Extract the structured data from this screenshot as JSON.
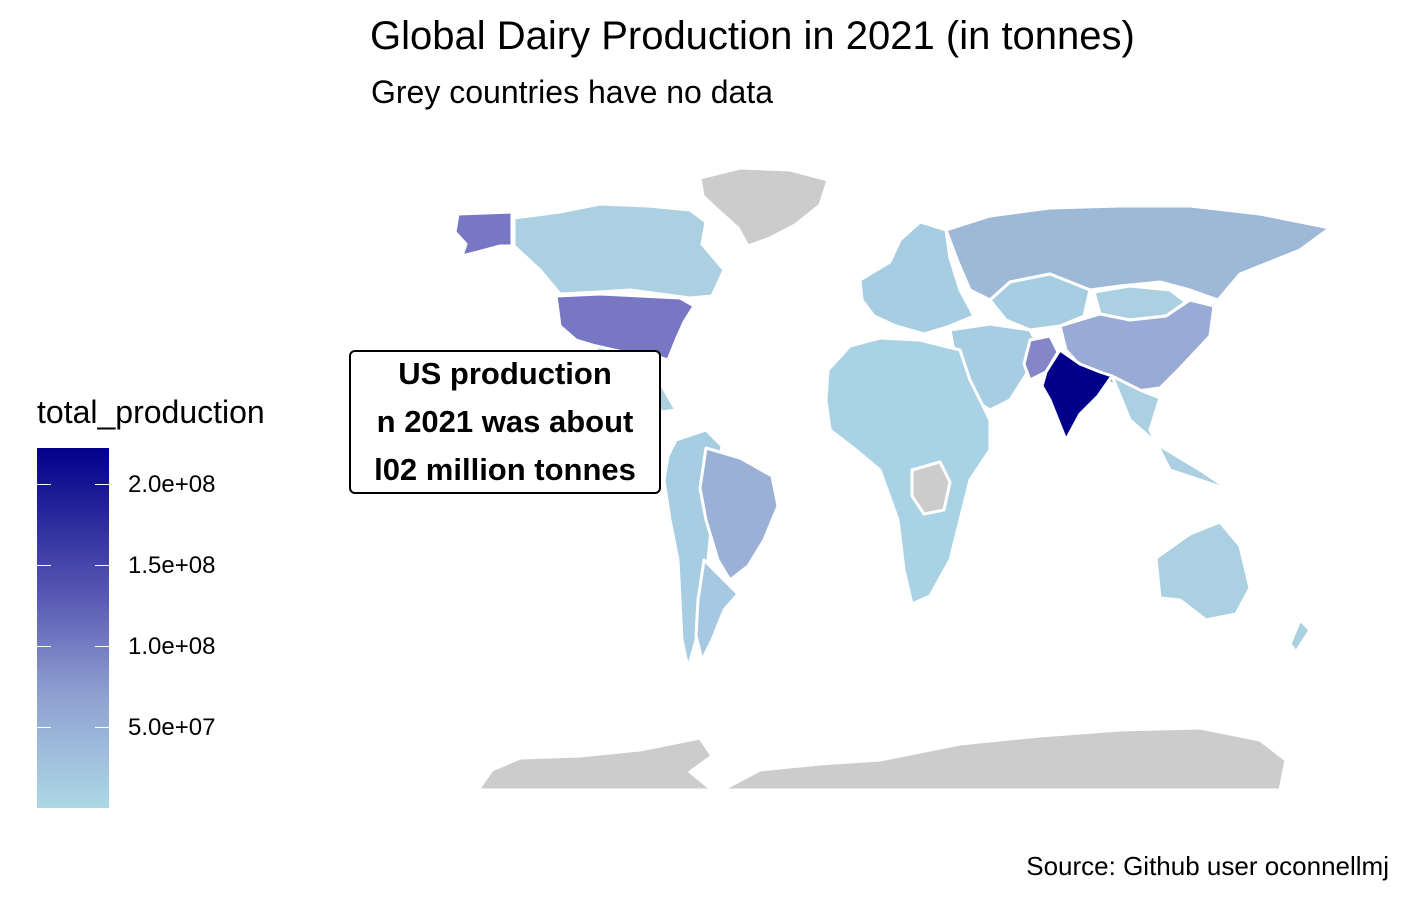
{
  "title": "Global Dairy Production in 2021 (in tonnes)",
  "subtitle": "Grey countries have no data",
  "caption": "Source: Github user oconnellmj",
  "legend": {
    "title": "total_production",
    "ticks": [
      "2.0e+08",
      "1.5e+08",
      "1.0e+08",
      "5.0e+07"
    ],
    "tick_values": [
      200000000,
      150000000,
      100000000,
      50000000
    ],
    "range": [
      0,
      222000000
    ],
    "color_low": "#add8e6",
    "color_high": "#00008b",
    "no_data_color": "#cccccc"
  },
  "annotation": {
    "lines": [
      "US production",
      "n 2021 was about",
      "l02 million tonnes"
    ]
  },
  "regions": [
    {
      "name": "India",
      "color": "#00008b"
    },
    {
      "name": "United States",
      "color": "#7777c3"
    },
    {
      "name": "Pakistan",
      "color": "#8486c8"
    },
    {
      "name": "China",
      "color": "#9aaad6"
    },
    {
      "name": "Brazil",
      "color": "#9ab0d6"
    },
    {
      "name": "Russia",
      "color": "#9eb8d8"
    },
    {
      "name": "Canada",
      "color": "#aad0e2"
    },
    {
      "name": "Australia",
      "color": "#aad0e2"
    },
    {
      "name": "Greenland",
      "color": "#cccccc"
    },
    {
      "name": "Antarctica",
      "color": "#cccccc"
    }
  ]
}
